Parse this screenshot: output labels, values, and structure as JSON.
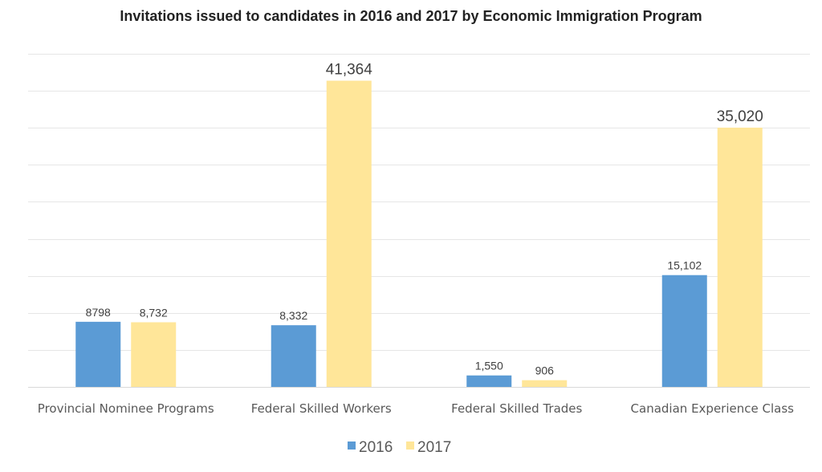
{
  "chart_data": {
    "type": "bar",
    "title": "Invitations issued to candidates in 2016 and 2017 by Economic Immigration Program",
    "xlabel": "",
    "ylabel": "",
    "ylim": [
      0,
      45000
    ],
    "grid_step": 5000,
    "grid": true,
    "y_tick_labels_visible": false,
    "legend_position": "bottom",
    "categories": [
      "Provincial Nominee Programs",
      "Federal Skilled Workers",
      "Federal Skilled Trades",
      "Canadian Experience Class"
    ],
    "series": [
      {
        "name": "2016",
        "color": "#5B9BD5",
        "values": [
          8798,
          8332,
          1550,
          15102
        ],
        "labels": [
          "8798",
          "8,332",
          "1,550",
          "15,102"
        ]
      },
      {
        "name": "2017",
        "color": "#FFE699",
        "values": [
          8732,
          41364,
          906,
          35020
        ],
        "labels": [
          "8,732",
          "41,364",
          "906",
          "35,020"
        ]
      }
    ]
  }
}
